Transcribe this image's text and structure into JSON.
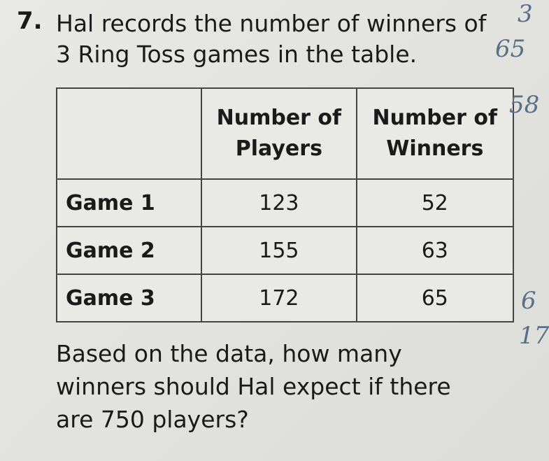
{
  "problem": {
    "number": "7.",
    "question_lines": [
      "Hal records the number of winners of",
      "3 Ring Toss games in the table."
    ],
    "table": {
      "header": [
        "",
        "Number of Players",
        "Number of Winners"
      ],
      "rows": [
        [
          "Game 1",
          123,
          52
        ],
        [
          "Game 2",
          155,
          63
        ],
        [
          "Game 3",
          172,
          65
        ]
      ]
    },
    "followup_lines": [
      "Based on the data, how many",
      "winners should Hal expect if there",
      "are 750 players?"
    ]
  },
  "handwriting": [
    "3",
    "65",
    "58",
    "6",
    "17"
  ]
}
